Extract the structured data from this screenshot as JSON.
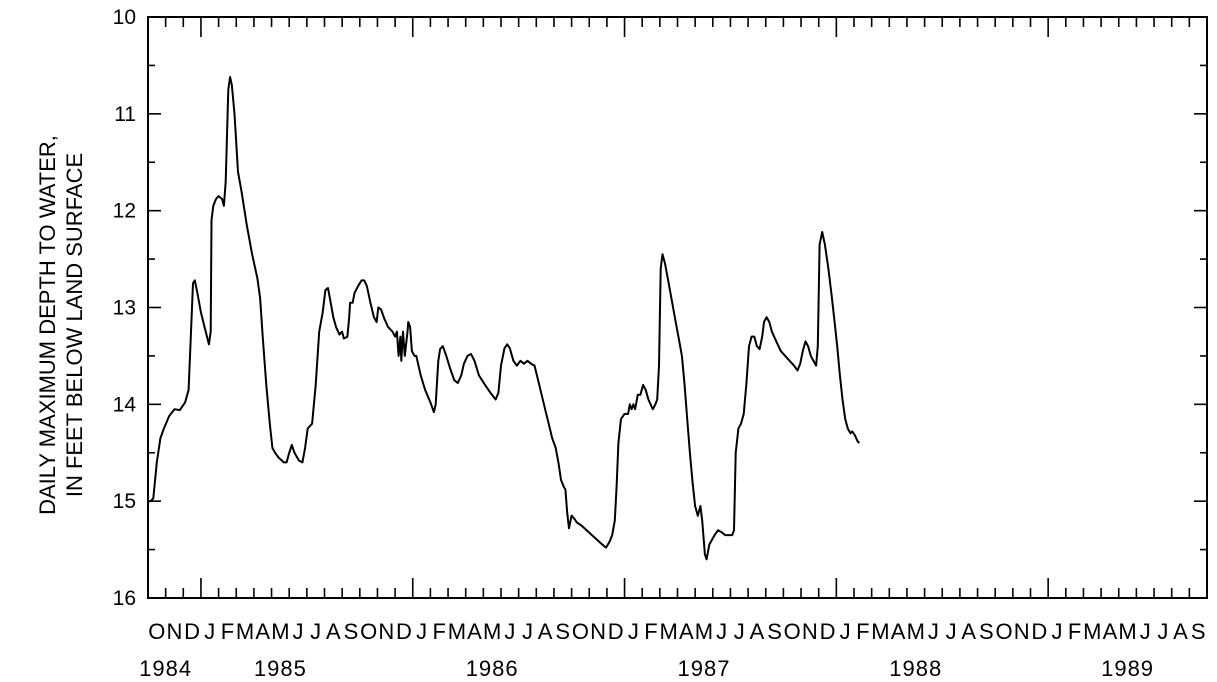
{
  "chart_data": {
    "type": "line",
    "title": "",
    "ylabel_line1": "DAILY MAXIMUM DEPTH TO WATER,",
    "ylabel_line2": "IN FEET BELOW LAND SURFACE",
    "xlabel": "",
    "ylim": [
      10,
      16
    ],
    "y_inverted": true,
    "y_ticks": [
      10,
      11,
      12,
      13,
      14,
      15,
      16
    ],
    "grid": false,
    "x_start": "1984-10",
    "months": [
      "O",
      "N",
      "D",
      "J",
      "F",
      "M",
      "A",
      "M",
      "J",
      "J",
      "A",
      "S",
      "O",
      "N",
      "D",
      "J",
      "F",
      "M",
      "A",
      "M",
      "J",
      "J",
      "A",
      "S",
      "O",
      "N",
      "D",
      "J",
      "F",
      "M",
      "A",
      "M",
      "J",
      "J",
      "A",
      "S",
      "O",
      "N",
      "D",
      "J",
      "F",
      "M",
      "A",
      "M",
      "J",
      "J",
      "A",
      "S",
      "O",
      "N",
      "D",
      "J",
      "F",
      "M",
      "A",
      "M",
      "J",
      "J",
      "A",
      "S"
    ],
    "years": [
      {
        "label": "1984",
        "month_index": 1
      },
      {
        "label": "1985",
        "month_index": 7.5
      },
      {
        "label": "1986",
        "month_index": 19.5
      },
      {
        "label": "1987",
        "month_index": 31.5
      },
      {
        "label": "1988",
        "month_index": 43.5
      },
      {
        "label": "1989",
        "month_index": 55.5
      }
    ],
    "series": [
      {
        "points": [
          [
            0.0,
            15.0
          ],
          [
            0.15,
            15.0
          ],
          [
            0.3,
            14.97
          ],
          [
            0.5,
            14.6
          ],
          [
            0.7,
            14.35
          ],
          [
            0.9,
            14.25
          ],
          [
            1.2,
            14.12
          ],
          [
            1.5,
            14.05
          ],
          [
            1.8,
            14.06
          ],
          [
            2.1,
            13.98
          ],
          [
            2.3,
            13.85
          ],
          [
            2.45,
            13.2
          ],
          [
            2.55,
            12.75
          ],
          [
            2.65,
            12.72
          ],
          [
            2.8,
            12.85
          ],
          [
            3.0,
            13.05
          ],
          [
            3.2,
            13.2
          ],
          [
            3.45,
            13.38
          ],
          [
            3.55,
            13.25
          ],
          [
            3.6,
            12.1
          ],
          [
            3.7,
            11.95
          ],
          [
            3.85,
            11.88
          ],
          [
            4.0,
            11.85
          ],
          [
            4.2,
            11.88
          ],
          [
            4.3,
            11.95
          ],
          [
            4.4,
            11.7
          ],
          [
            4.55,
            10.75
          ],
          [
            4.65,
            10.62
          ],
          [
            4.75,
            10.7
          ],
          [
            4.9,
            11.0
          ],
          [
            5.1,
            11.6
          ],
          [
            5.3,
            11.8
          ],
          [
            5.6,
            12.15
          ],
          [
            5.9,
            12.45
          ],
          [
            6.2,
            12.7
          ],
          [
            6.35,
            12.9
          ],
          [
            6.5,
            13.3
          ],
          [
            6.7,
            13.8
          ],
          [
            6.9,
            14.2
          ],
          [
            7.05,
            14.45
          ],
          [
            7.2,
            14.5
          ],
          [
            7.4,
            14.55
          ],
          [
            7.7,
            14.6
          ],
          [
            7.85,
            14.6
          ],
          [
            8.0,
            14.5
          ],
          [
            8.15,
            14.42
          ],
          [
            8.3,
            14.5
          ],
          [
            8.55,
            14.58
          ],
          [
            8.75,
            14.6
          ],
          [
            8.9,
            14.45
          ],
          [
            9.05,
            14.25
          ],
          [
            9.3,
            14.2
          ],
          [
            9.5,
            13.8
          ],
          [
            9.7,
            13.25
          ],
          [
            9.9,
            13.05
          ],
          [
            10.05,
            12.82
          ],
          [
            10.2,
            12.8
          ],
          [
            10.35,
            12.95
          ],
          [
            10.5,
            13.1
          ],
          [
            10.65,
            13.2
          ],
          [
            10.85,
            13.28
          ],
          [
            11.0,
            13.25
          ],
          [
            11.1,
            13.32
          ],
          [
            11.3,
            13.3
          ],
          [
            11.4,
            13.1
          ],
          [
            11.45,
            12.95
          ],
          [
            11.6,
            12.95
          ],
          [
            11.7,
            12.85
          ],
          [
            11.9,
            12.78
          ],
          [
            12.1,
            12.72
          ],
          [
            12.25,
            12.72
          ],
          [
            12.4,
            12.78
          ],
          [
            12.6,
            12.95
          ],
          [
            12.8,
            13.1
          ],
          [
            12.95,
            13.15
          ],
          [
            13.05,
            13.0
          ],
          [
            13.2,
            13.02
          ],
          [
            13.4,
            13.12
          ],
          [
            13.6,
            13.2
          ],
          [
            13.85,
            13.25
          ],
          [
            14.0,
            13.3
          ],
          [
            14.1,
            13.25
          ],
          [
            14.2,
            13.5
          ],
          [
            14.3,
            13.3
          ],
          [
            14.35,
            13.55
          ],
          [
            14.45,
            13.25
          ],
          [
            14.55,
            13.5
          ],
          [
            14.7,
            13.25
          ],
          [
            14.75,
            13.15
          ],
          [
            14.85,
            13.2
          ],
          [
            14.95,
            13.45
          ],
          [
            15.1,
            13.5
          ],
          [
            15.2,
            13.5
          ],
          [
            15.45,
            13.7
          ],
          [
            15.7,
            13.85
          ],
          [
            16.0,
            13.98
          ],
          [
            16.2,
            14.08
          ],
          [
            16.3,
            14.0
          ],
          [
            16.45,
            13.55
          ],
          [
            16.55,
            13.43
          ],
          [
            16.7,
            13.4
          ],
          [
            16.9,
            13.5
          ],
          [
            17.1,
            13.62
          ],
          [
            17.35,
            13.75
          ],
          [
            17.55,
            13.78
          ],
          [
            17.75,
            13.7
          ],
          [
            17.9,
            13.58
          ],
          [
            18.1,
            13.5
          ],
          [
            18.3,
            13.48
          ],
          [
            18.5,
            13.55
          ],
          [
            18.75,
            13.7
          ],
          [
            19.1,
            13.8
          ],
          [
            19.4,
            13.88
          ],
          [
            19.7,
            13.95
          ],
          [
            19.85,
            13.88
          ],
          [
            20.0,
            13.6
          ],
          [
            20.2,
            13.42
          ],
          [
            20.35,
            13.38
          ],
          [
            20.5,
            13.42
          ],
          [
            20.7,
            13.55
          ],
          [
            20.9,
            13.6
          ],
          [
            21.1,
            13.55
          ],
          [
            21.3,
            13.58
          ],
          [
            21.5,
            13.55
          ],
          [
            21.7,
            13.58
          ],
          [
            21.9,
            13.6
          ],
          [
            22.1,
            13.75
          ],
          [
            22.3,
            13.9
          ],
          [
            22.5,
            14.05
          ],
          [
            22.7,
            14.2
          ],
          [
            22.9,
            14.35
          ],
          [
            23.1,
            14.45
          ],
          [
            23.25,
            14.6
          ],
          [
            23.4,
            14.78
          ],
          [
            23.55,
            14.85
          ],
          [
            23.65,
            14.88
          ],
          [
            23.75,
            15.12
          ],
          [
            23.85,
            15.28
          ],
          [
            24.0,
            15.15
          ],
          [
            24.15,
            15.18
          ],
          [
            24.3,
            15.22
          ],
          [
            24.55,
            15.25
          ],
          [
            24.85,
            15.3
          ],
          [
            25.15,
            15.35
          ],
          [
            25.45,
            15.4
          ],
          [
            25.75,
            15.45
          ],
          [
            25.95,
            15.48
          ],
          [
            26.15,
            15.42
          ],
          [
            26.3,
            15.35
          ],
          [
            26.45,
            15.2
          ],
          [
            26.55,
            14.85
          ],
          [
            26.65,
            14.4
          ],
          [
            26.8,
            14.15
          ],
          [
            27.0,
            14.1
          ],
          [
            27.2,
            14.1
          ],
          [
            27.3,
            14.0
          ],
          [
            27.4,
            14.05
          ],
          [
            27.5,
            14.0
          ],
          [
            27.6,
            14.05
          ],
          [
            27.75,
            13.9
          ],
          [
            27.9,
            13.9
          ],
          [
            28.05,
            13.8
          ],
          [
            28.2,
            13.85
          ],
          [
            28.35,
            13.95
          ],
          [
            28.6,
            14.05
          ],
          [
            28.75,
            14.0
          ],
          [
            28.85,
            13.95
          ],
          [
            28.95,
            13.6
          ],
          [
            29.05,
            12.6
          ],
          [
            29.15,
            12.45
          ],
          [
            29.3,
            12.55
          ],
          [
            29.5,
            12.75
          ],
          [
            29.7,
            12.95
          ],
          [
            29.9,
            13.15
          ],
          [
            30.1,
            13.35
          ],
          [
            30.25,
            13.5
          ],
          [
            30.4,
            13.8
          ],
          [
            30.55,
            14.15
          ],
          [
            30.7,
            14.5
          ],
          [
            30.85,
            14.8
          ],
          [
            31.0,
            15.05
          ],
          [
            31.15,
            15.15
          ],
          [
            31.3,
            15.05
          ],
          [
            31.4,
            15.2
          ],
          [
            31.55,
            15.55
          ],
          [
            31.65,
            15.6
          ],
          [
            31.8,
            15.45
          ],
          [
            31.95,
            15.4
          ],
          [
            32.1,
            15.35
          ],
          [
            32.3,
            15.3
          ],
          [
            32.5,
            15.32
          ],
          [
            32.7,
            15.35
          ],
          [
            32.9,
            15.35
          ],
          [
            33.1,
            15.35
          ],
          [
            33.2,
            15.3
          ],
          [
            33.3,
            14.5
          ],
          [
            33.45,
            14.25
          ],
          [
            33.6,
            14.2
          ],
          [
            33.75,
            14.1
          ],
          [
            33.9,
            13.8
          ],
          [
            34.05,
            13.4
          ],
          [
            34.2,
            13.3
          ],
          [
            34.35,
            13.3
          ],
          [
            34.5,
            13.4
          ],
          [
            34.65,
            13.43
          ],
          [
            34.8,
            13.3
          ],
          [
            34.9,
            13.15
          ],
          [
            35.05,
            13.1
          ],
          [
            35.2,
            13.15
          ],
          [
            35.35,
            13.25
          ],
          [
            35.6,
            13.35
          ],
          [
            35.85,
            13.45
          ],
          [
            36.1,
            13.5
          ],
          [
            36.35,
            13.55
          ],
          [
            36.6,
            13.6
          ],
          [
            36.8,
            13.65
          ],
          [
            36.95,
            13.58
          ],
          [
            37.1,
            13.45
          ],
          [
            37.25,
            13.35
          ],
          [
            37.4,
            13.4
          ],
          [
            37.55,
            13.5
          ],
          [
            37.7,
            13.55
          ],
          [
            37.85,
            13.6
          ],
          [
            37.95,
            13.4
          ],
          [
            38.05,
            12.35
          ],
          [
            38.2,
            12.22
          ],
          [
            38.35,
            12.35
          ],
          [
            38.55,
            12.6
          ],
          [
            38.75,
            12.9
          ],
          [
            38.9,
            13.15
          ],
          [
            39.05,
            13.4
          ],
          [
            39.2,
            13.7
          ],
          [
            39.35,
            13.95
          ],
          [
            39.5,
            14.15
          ],
          [
            39.65,
            14.25
          ],
          [
            39.8,
            14.3
          ],
          [
            39.9,
            14.28
          ],
          [
            40.05,
            14.32
          ],
          [
            40.2,
            14.38
          ],
          [
            40.3,
            14.4
          ]
        ]
      }
    ]
  }
}
